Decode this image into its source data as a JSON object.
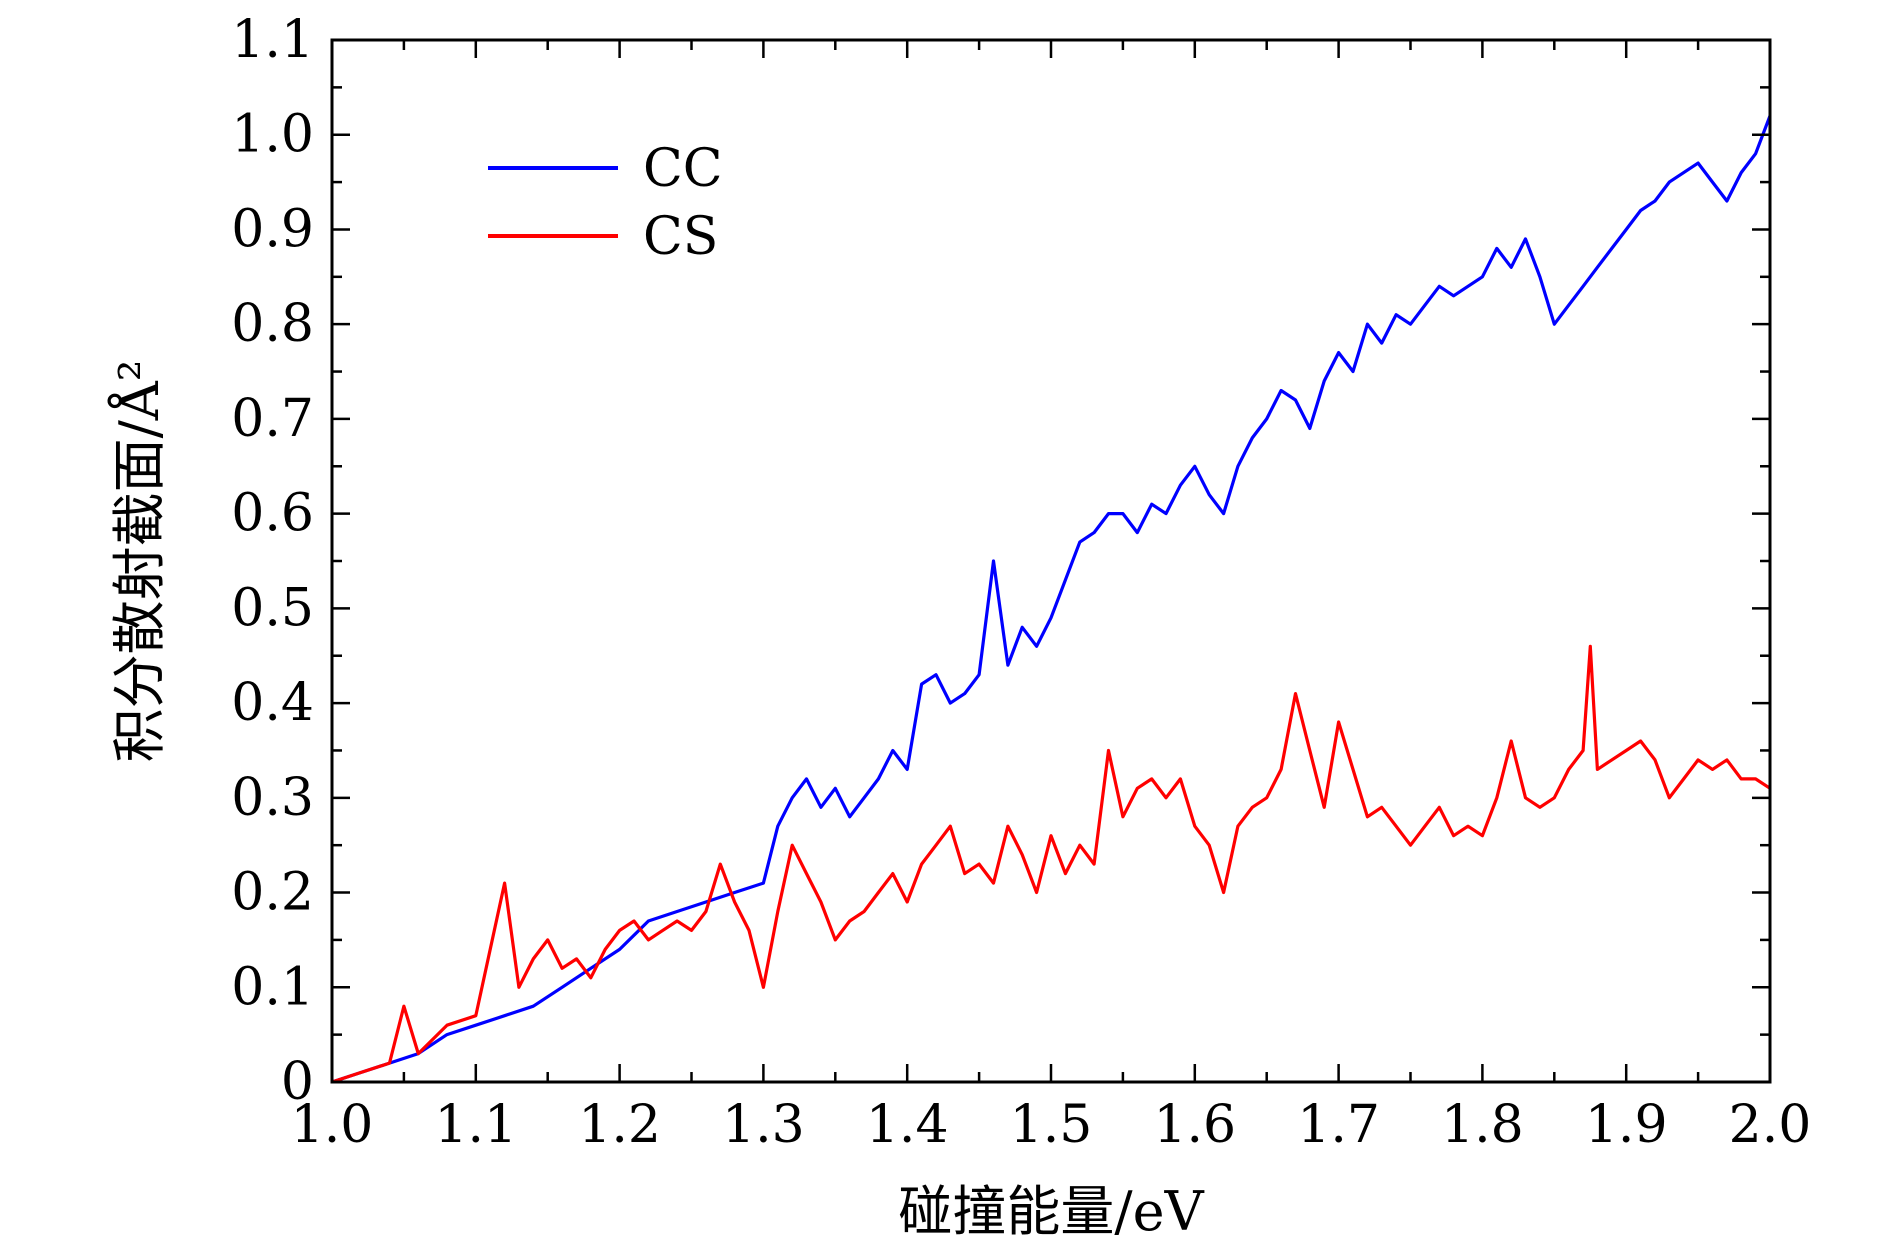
{
  "chart_data": {
    "type": "line",
    "title": "",
    "xlabel": "碰撞能量/eV",
    "ylabel": "积分散射截面/Å²",
    "xlim": [
      1.0,
      2.0
    ],
    "ylim": [
      0.0,
      1.1
    ],
    "x_tick_labels": [
      "1.0",
      "1.1",
      "1.2",
      "1.3",
      "1.4",
      "1.5",
      "1.6",
      "1.7",
      "1.8",
      "1.9",
      "2.0"
    ],
    "y_tick_labels": [
      "0",
      "0.1",
      "0.2",
      "0.3",
      "0.4",
      "0.5",
      "0.6",
      "0.7",
      "0.8",
      "0.9",
      "1.0",
      "1.1"
    ],
    "grid": false,
    "legend_position": "top-left",
    "series": [
      {
        "name": "CC",
        "color": "#0000ff",
        "x": [
          1.0,
          1.02,
          1.04,
          1.06,
          1.08,
          1.1,
          1.12,
          1.14,
          1.16,
          1.18,
          1.2,
          1.22,
          1.24,
          1.26,
          1.28,
          1.3,
          1.31,
          1.32,
          1.33,
          1.34,
          1.35,
          1.36,
          1.37,
          1.38,
          1.39,
          1.4,
          1.41,
          1.42,
          1.43,
          1.44,
          1.45,
          1.46,
          1.47,
          1.48,
          1.49,
          1.5,
          1.51,
          1.52,
          1.53,
          1.54,
          1.55,
          1.56,
          1.57,
          1.58,
          1.59,
          1.6,
          1.61,
          1.62,
          1.63,
          1.64,
          1.65,
          1.66,
          1.67,
          1.68,
          1.69,
          1.7,
          1.71,
          1.72,
          1.73,
          1.74,
          1.75,
          1.76,
          1.77,
          1.78,
          1.79,
          1.8,
          1.81,
          1.82,
          1.83,
          1.84,
          1.85,
          1.86,
          1.87,
          1.88,
          1.89,
          1.9,
          1.91,
          1.92,
          1.93,
          1.94,
          1.95,
          1.96,
          1.97,
          1.98,
          1.99,
          2.0
        ],
        "y": [
          0.0,
          0.01,
          0.02,
          0.03,
          0.05,
          0.06,
          0.07,
          0.08,
          0.1,
          0.12,
          0.14,
          0.17,
          0.18,
          0.19,
          0.2,
          0.21,
          0.27,
          0.3,
          0.32,
          0.29,
          0.31,
          0.28,
          0.3,
          0.32,
          0.35,
          0.33,
          0.42,
          0.43,
          0.4,
          0.41,
          0.43,
          0.55,
          0.44,
          0.48,
          0.46,
          0.49,
          0.53,
          0.57,
          0.58,
          0.6,
          0.6,
          0.58,
          0.61,
          0.6,
          0.63,
          0.65,
          0.62,
          0.6,
          0.65,
          0.68,
          0.7,
          0.73,
          0.72,
          0.69,
          0.74,
          0.77,
          0.75,
          0.8,
          0.78,
          0.81,
          0.8,
          0.82,
          0.84,
          0.83,
          0.84,
          0.85,
          0.88,
          0.86,
          0.89,
          0.85,
          0.8,
          0.82,
          0.84,
          0.86,
          0.88,
          0.9,
          0.92,
          0.93,
          0.95,
          0.96,
          0.97,
          0.95,
          0.93,
          0.96,
          0.98,
          1.02
        ]
      },
      {
        "name": "CS",
        "color": "#ff0000",
        "x": [
          1.0,
          1.02,
          1.04,
          1.05,
          1.06,
          1.08,
          1.1,
          1.11,
          1.12,
          1.13,
          1.14,
          1.15,
          1.16,
          1.17,
          1.18,
          1.19,
          1.2,
          1.21,
          1.22,
          1.23,
          1.24,
          1.25,
          1.26,
          1.27,
          1.28,
          1.29,
          1.3,
          1.31,
          1.32,
          1.33,
          1.34,
          1.35,
          1.36,
          1.37,
          1.38,
          1.39,
          1.4,
          1.41,
          1.42,
          1.43,
          1.44,
          1.45,
          1.46,
          1.47,
          1.48,
          1.49,
          1.5,
          1.51,
          1.52,
          1.53,
          1.54,
          1.55,
          1.56,
          1.57,
          1.58,
          1.59,
          1.6,
          1.61,
          1.62,
          1.63,
          1.64,
          1.65,
          1.66,
          1.67,
          1.68,
          1.69,
          1.7,
          1.71,
          1.72,
          1.73,
          1.74,
          1.75,
          1.76,
          1.77,
          1.78,
          1.79,
          1.8,
          1.81,
          1.82,
          1.83,
          1.84,
          1.85,
          1.86,
          1.87,
          1.875,
          1.88,
          1.89,
          1.9,
          1.91,
          1.92,
          1.93,
          1.94,
          1.95,
          1.96,
          1.97,
          1.98,
          1.99,
          2.0
        ],
        "y": [
          0.0,
          0.01,
          0.02,
          0.08,
          0.03,
          0.06,
          0.07,
          0.14,
          0.21,
          0.1,
          0.13,
          0.15,
          0.12,
          0.13,
          0.11,
          0.14,
          0.16,
          0.17,
          0.15,
          0.16,
          0.17,
          0.16,
          0.18,
          0.23,
          0.19,
          0.16,
          0.1,
          0.18,
          0.25,
          0.22,
          0.19,
          0.15,
          0.17,
          0.18,
          0.2,
          0.22,
          0.19,
          0.23,
          0.25,
          0.27,
          0.22,
          0.23,
          0.21,
          0.27,
          0.24,
          0.2,
          0.26,
          0.22,
          0.25,
          0.23,
          0.35,
          0.28,
          0.31,
          0.32,
          0.3,
          0.32,
          0.27,
          0.25,
          0.2,
          0.27,
          0.29,
          0.3,
          0.33,
          0.41,
          0.35,
          0.29,
          0.38,
          0.33,
          0.28,
          0.29,
          0.27,
          0.25,
          0.27,
          0.29,
          0.26,
          0.27,
          0.26,
          0.3,
          0.36,
          0.3,
          0.29,
          0.3,
          0.33,
          0.35,
          0.46,
          0.33,
          0.34,
          0.35,
          0.36,
          0.34,
          0.3,
          0.32,
          0.34,
          0.33,
          0.34,
          0.32,
          0.32,
          0.31
        ]
      }
    ]
  }
}
